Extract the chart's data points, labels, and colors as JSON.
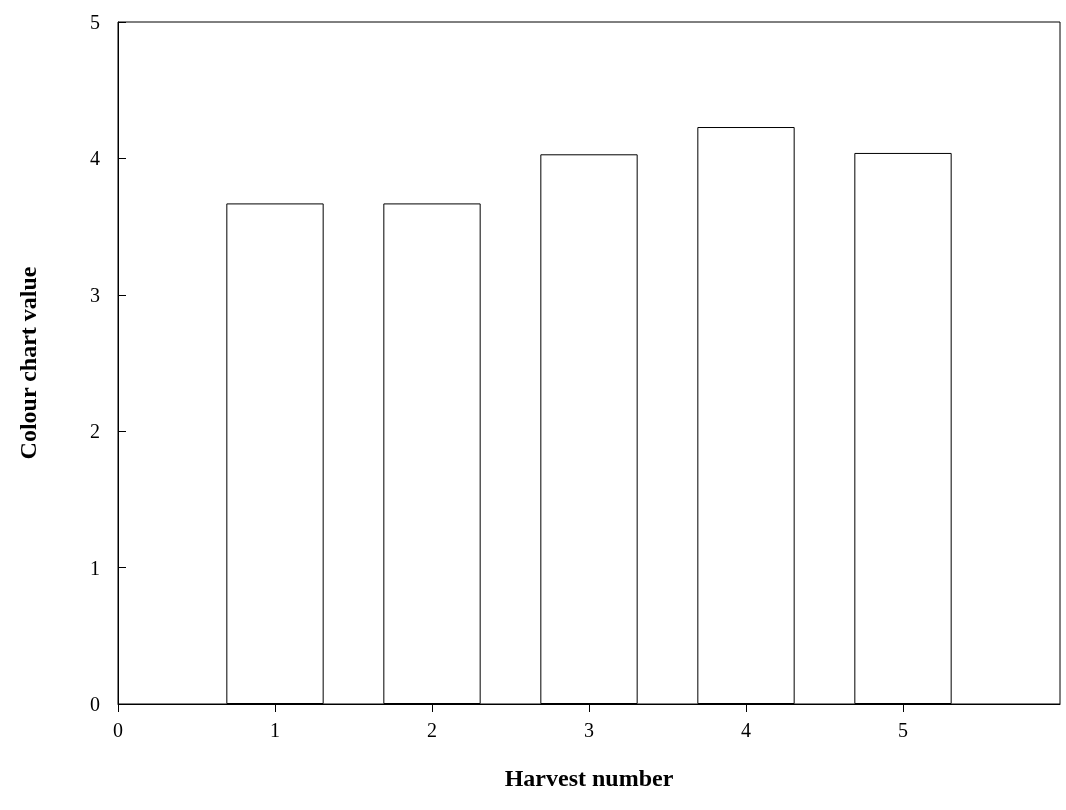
{
  "chart_data": {
    "type": "bar",
    "xlabel": "Harvest number",
    "ylabel": "Colour chart value",
    "x": [
      1,
      2,
      3,
      4,
      5
    ],
    "values": [
      3.67,
      3.67,
      4.03,
      4.23,
      4.04
    ],
    "color": "#ffffff",
    "xlim": [
      0,
      6
    ],
    "xticks": [
      0,
      1,
      2,
      3,
      4,
      5
    ],
    "ylim": [
      0,
      5
    ],
    "yticks": [
      0,
      1,
      2,
      3,
      4,
      5
    ],
    "grid": false
  }
}
